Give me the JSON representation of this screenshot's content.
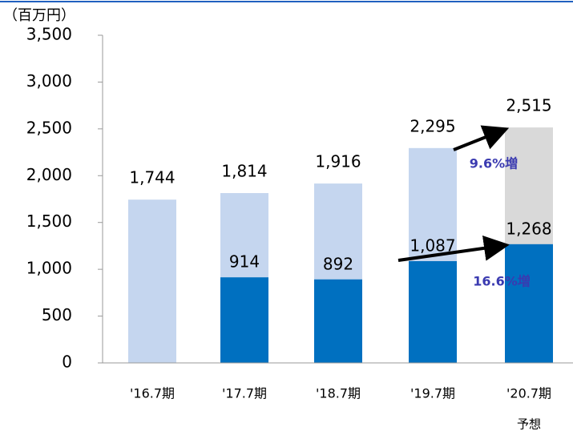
{
  "chart_data": {
    "type": "bar",
    "unit_label": "（百万円）",
    "categories": [
      "'16.7期",
      "'17.7期",
      "'18.7期",
      "'19.7期",
      "'20.7期"
    ],
    "category_note": "予想",
    "series": [
      {
        "colors": [
          "#c5d6ef",
          "#c5d6ef",
          "#c5d6ef",
          "#c5d6ef",
          "#d9d9d9"
        ],
        "values": [
          1744,
          1814,
          1916,
          2295,
          2515
        ],
        "value_labels": [
          "1,744",
          "1,814",
          "1,916",
          "2,295",
          "2,515"
        ]
      },
      {
        "color": "#0070c0",
        "values": [
          null,
          914,
          892,
          1087,
          1268
        ],
        "value_labels": [
          null,
          "914",
          "892",
          "1,087",
          "1,268"
        ]
      }
    ],
    "annotations": [
      "9.6%増",
      "16.6%増"
    ],
    "ylim": [
      0,
      3500
    ],
    "yticks": [
      0,
      500,
      {
        "value": 1000,
        "label": "1,000"
      },
      {
        "value": 1500,
        "label": "1,500"
      },
      {
        "value": 2000,
        "label": "2,000"
      },
      {
        "value": 2500,
        "label": "2,500"
      },
      {
        "value": 3000,
        "label": "3,000"
      },
      {
        "value": 3500,
        "label": "3,500"
      }
    ]
  }
}
